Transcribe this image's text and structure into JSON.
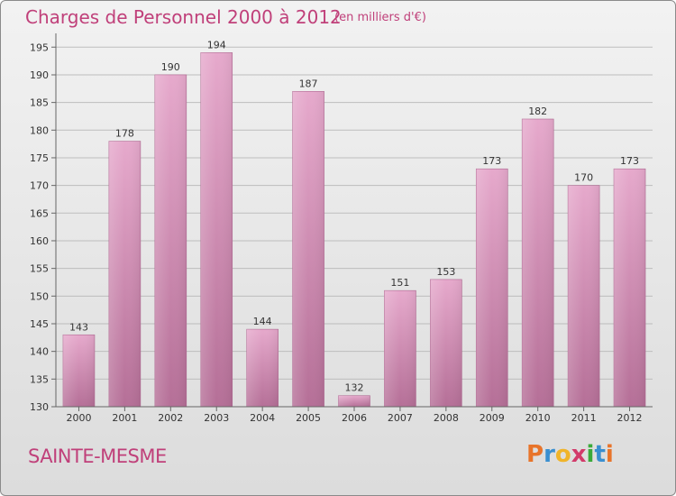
{
  "title": "Charges de Personnel 2000 à 2012",
  "subtitle": "(en milliers d'€)",
  "commune": "SAINTE-MESME",
  "logo": {
    "text": "Proxiti",
    "letters": [
      "P",
      "r",
      "o",
      "x",
      "i",
      "t",
      "i"
    ],
    "colors": [
      "#e8742a",
      "#3a8fd0",
      "#f0b42a",
      "#d23a6a",
      "#3aaa3a",
      "#3a8fd0",
      "#e8742a"
    ]
  },
  "chart_data": {
    "type": "bar",
    "categories": [
      "2000",
      "2001",
      "2002",
      "2003",
      "2004",
      "2005",
      "2006",
      "2007",
      "2008",
      "2009",
      "2010",
      "2011",
      "2012"
    ],
    "values": [
      143,
      178,
      190,
      194,
      144,
      187,
      132,
      151,
      153,
      173,
      182,
      170,
      173
    ],
    "ylim": [
      130,
      197
    ],
    "yticks": [
      130,
      135,
      140,
      145,
      150,
      155,
      160,
      165,
      170,
      175,
      180,
      185,
      190,
      195
    ],
    "grid": true,
    "bar_color": "#d787b3",
    "grid_color": "#bdbdbd"
  }
}
